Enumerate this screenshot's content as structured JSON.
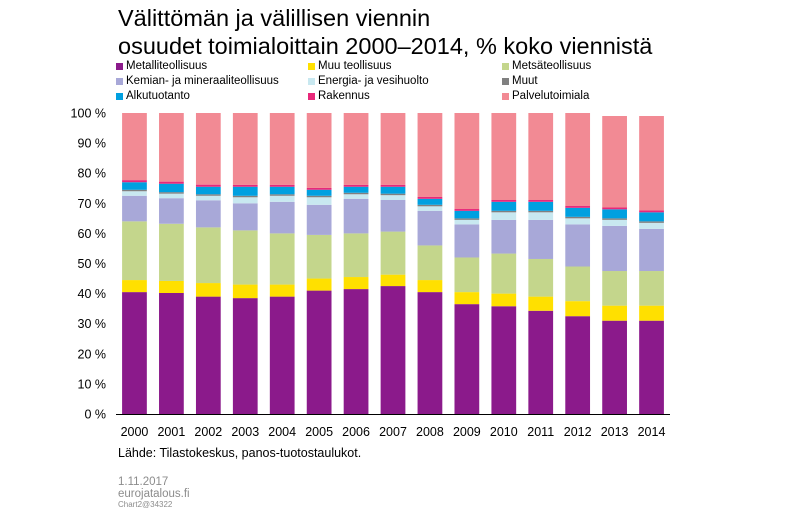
{
  "chart_data": {
    "type": "bar",
    "stacked": true,
    "title_lines": [
      "Välittömän ja välillisen viennin",
      "osuudet toimialoittain 2000–2014, % koko viennistä"
    ],
    "xlabel": "",
    "ylabel": "",
    "ylim": [
      0,
      100
    ],
    "ytick_labels": [
      "0 %",
      "10 %",
      "20 %",
      "30 %",
      "40 %",
      "50 %",
      "60 %",
      "70 %",
      "80 %",
      "90 %",
      "100 %"
    ],
    "categories": [
      "2000",
      "2001",
      "2002",
      "2003",
      "2004",
      "2005",
      "2006",
      "2007",
      "2008",
      "2009",
      "2010",
      "2011",
      "2012",
      "2013",
      "2014"
    ],
    "series": [
      {
        "name": "Metalliteollisuus",
        "color": "#8b1a8b",
        "values": [
          40.5,
          40.2,
          39,
          38.5,
          39,
          41,
          41.5,
          42.5,
          40.5,
          36.5,
          35.8,
          34.3,
          32.5,
          31,
          31
        ]
      },
      {
        "name": "Muu teollisuus",
        "color": "#ffe000",
        "values": [
          4,
          4,
          4.5,
          4.5,
          4,
          4,
          4,
          3.8,
          4,
          4,
          4.2,
          4.7,
          5,
          5,
          5
        ]
      },
      {
        "name": "Metsäteollisuus",
        "color": "#c4d68c",
        "values": [
          19.5,
          19,
          18.5,
          18,
          17,
          14.5,
          14.5,
          14.3,
          11.5,
          11.5,
          13.3,
          12.5,
          11.5,
          11.5,
          11.5
        ]
      },
      {
        "name": "Kemian- ja mineraaliteollisuus",
        "color": "#a8a8d8",
        "values": [
          8.5,
          8.5,
          9,
          9,
          10.5,
          10,
          11.5,
          10.5,
          11.5,
          11,
          11.2,
          13,
          14,
          15,
          14
        ]
      },
      {
        "name": "Energia- ja vesihuolto",
        "color": "#c8e8f0",
        "values": [
          1.5,
          1.5,
          1.5,
          2,
          2,
          2.5,
          1.5,
          1.6,
          1.5,
          1.5,
          2.5,
          2.5,
          2,
          2,
          2
        ]
      },
      {
        "name": "Muut",
        "color": "#808080",
        "values": [
          0.5,
          0.5,
          0.5,
          0.5,
          0.5,
          0.5,
          0.5,
          0.5,
          0.5,
          0.5,
          0.5,
          0.5,
          0.5,
          0.5,
          0.5
        ]
      },
      {
        "name": "Alkutuotanto",
        "color": "#00a0e0",
        "values": [
          2.5,
          2.8,
          2.5,
          3,
          2.5,
          2,
          2,
          2.3,
          2,
          2.5,
          3,
          3,
          3,
          3,
          3
        ]
      },
      {
        "name": "Rakennus",
        "color": "#e8287a",
        "values": [
          0.7,
          0.7,
          0.7,
          0.6,
          0.6,
          0.6,
          0.6,
          0.6,
          0.6,
          0.6,
          0.6,
          0.6,
          0.6,
          0.6,
          0.6
        ]
      },
      {
        "name": "Palvelutoimiala",
        "color": "#f28a94",
        "values": [
          22.3,
          22.8,
          23.8,
          23.9,
          23.9,
          24.9,
          23.9,
          23.9,
          27.9,
          31.9,
          28.9,
          28.9,
          30.9,
          30.4,
          31.4
        ]
      }
    ],
    "legend_order": [
      0,
      1,
      2,
      3,
      4,
      5,
      6,
      7,
      8
    ]
  },
  "source": "Lähde:  Tilastokeskus,  panos-tuotostaulukot.",
  "footer": {
    "date": "1.11.2017",
    "site": "eurojatalous.fi",
    "chart_id": "Chart2@34322"
  }
}
